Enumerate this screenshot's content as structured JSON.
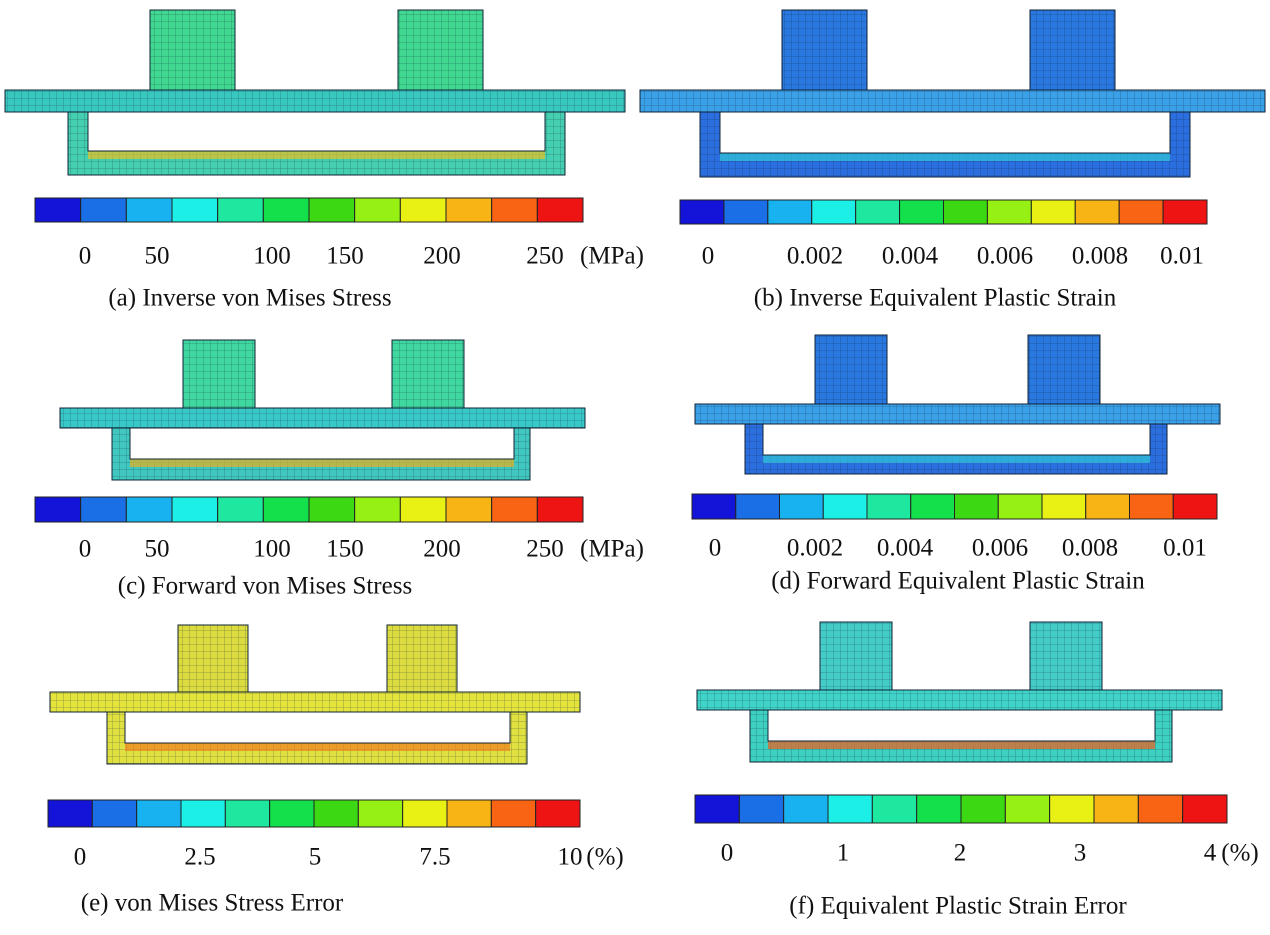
{
  "colorbar_colors": [
    "#1414d8",
    "#1a6ee6",
    "#18b2f0",
    "#1cf0e6",
    "#1ee8a0",
    "#14e04c",
    "#3cd814",
    "#96f014",
    "#e8f014",
    "#f8b414",
    "#f86414",
    "#ee1414"
  ],
  "panels": [
    {
      "caption": "(a) Inverse von Mises Stress",
      "ticks": [
        "0",
        "50",
        "100",
        "150",
        "200",
        "250"
      ],
      "unit": "(MPa)"
    },
    {
      "caption": "(b) Inverse Equivalent Plastic Strain",
      "ticks": [
        "0",
        "0.002",
        "0.004",
        "0.006",
        "0.008",
        "0.01"
      ]
    },
    {
      "caption": "(c) Forward von Mises Stress",
      "ticks": [
        "0",
        "50",
        "100",
        "150",
        "200",
        "250"
      ],
      "unit": "(MPa)"
    },
    {
      "caption": "(d) Forward Equivalent Plastic Strain",
      "ticks": [
        "0",
        "0.002",
        "0.004",
        "0.006",
        "0.008",
        "0.01"
      ]
    },
    {
      "caption": "(e) von Mises Stress Error",
      "ticks": [
        "0",
        "2.5",
        "5",
        "7.5",
        "10"
      ],
      "unit": "(%)"
    },
    {
      "caption": "(f) Equivalent Plastic Strain Error",
      "ticks": [
        "0",
        "1",
        "2",
        "3",
        "4"
      ],
      "unit": "(%)"
    }
  ]
}
